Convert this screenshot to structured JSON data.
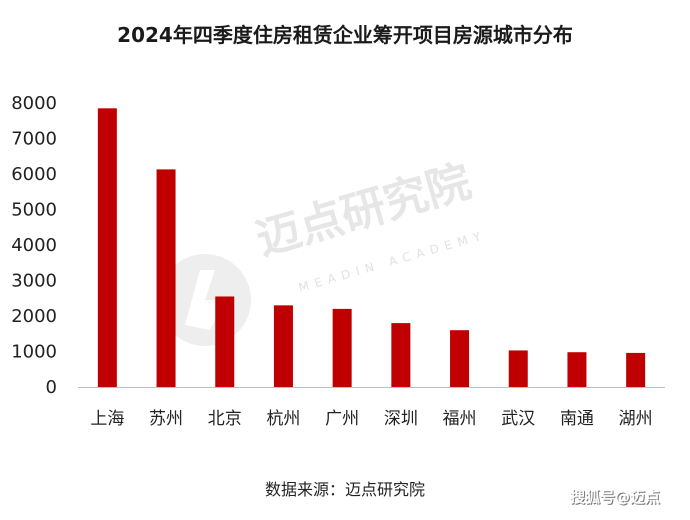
{
  "chart_data": {
    "type": "bar",
    "title": "2024年四季度住房租赁企业筹开项目房源城市分布",
    "categories": [
      "上海",
      "苏州",
      "北京",
      "杭州",
      "广州",
      "深圳",
      "福州",
      "武汉",
      "南通",
      "湖州"
    ],
    "values": [
      7850,
      6130,
      2550,
      2300,
      2200,
      1800,
      1600,
      1030,
      980,
      960
    ],
    "ylim": [
      0,
      8000
    ],
    "yticks": [
      0,
      1000,
      2000,
      3000,
      4000,
      5000,
      6000,
      7000,
      8000
    ],
    "xlabel": "",
    "ylabel": "",
    "grid": false,
    "bar_color": "#c00000"
  },
  "source_text": "数据来源：迈点研究院",
  "watermark": {
    "text": "迈点研究院",
    "subtext": "MEADIN ACADEMY"
  },
  "corner_text": "搜狐号@迈点"
}
